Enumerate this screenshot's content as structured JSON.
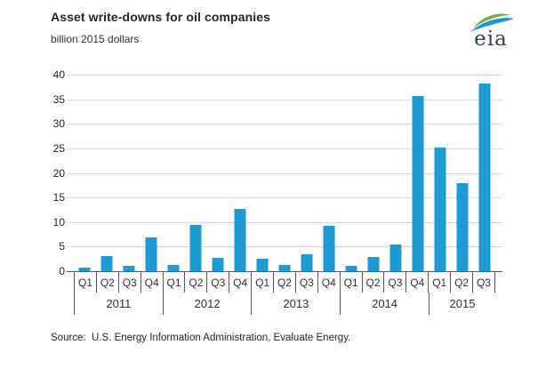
{
  "header": {
    "title": "Asset write-downs for oil companies",
    "subtitle": "billion 2015 dollars"
  },
  "logo": {
    "text": "eia"
  },
  "source": "Source:  U.S. Energy Information Administration, Evaluate Energy.",
  "colors": {
    "bar": "#1e9bd5",
    "gridline": "#dcdcdc",
    "axis": "#595959",
    "text": "#262626",
    "logo_green": "#6fae3e",
    "logo_blue": "#2196d3"
  },
  "chart_data": {
    "type": "bar",
    "title": "Asset write-downs for oil companies",
    "ylabel": "billion 2015 dollars",
    "xlabel": "",
    "ylim": [
      0,
      40
    ],
    "ytick_step": 5,
    "grid": "horizontal",
    "legend": "none",
    "groups": [
      {
        "year": "2011",
        "quarters": [
          "Q1",
          "Q2",
          "Q3",
          "Q4"
        ],
        "values": [
          0.8,
          3.0,
          1.1,
          6.8
        ]
      },
      {
        "year": "2012",
        "quarters": [
          "Q1",
          "Q2",
          "Q3",
          "Q4"
        ],
        "values": [
          1.3,
          9.4,
          2.8,
          12.6
        ]
      },
      {
        "year": "2013",
        "quarters": [
          "Q1",
          "Q2",
          "Q3",
          "Q4"
        ],
        "values": [
          2.5,
          1.2,
          3.4,
          9.2
        ]
      },
      {
        "year": "2014",
        "quarters": [
          "Q1",
          "Q2",
          "Q3",
          "Q4"
        ],
        "values": [
          1.1,
          2.9,
          5.5,
          35.7
        ]
      },
      {
        "year": "2015",
        "quarters": [
          "Q1",
          "Q2",
          "Q3"
        ],
        "values": [
          25.2,
          18.0,
          38.2
        ]
      }
    ]
  }
}
